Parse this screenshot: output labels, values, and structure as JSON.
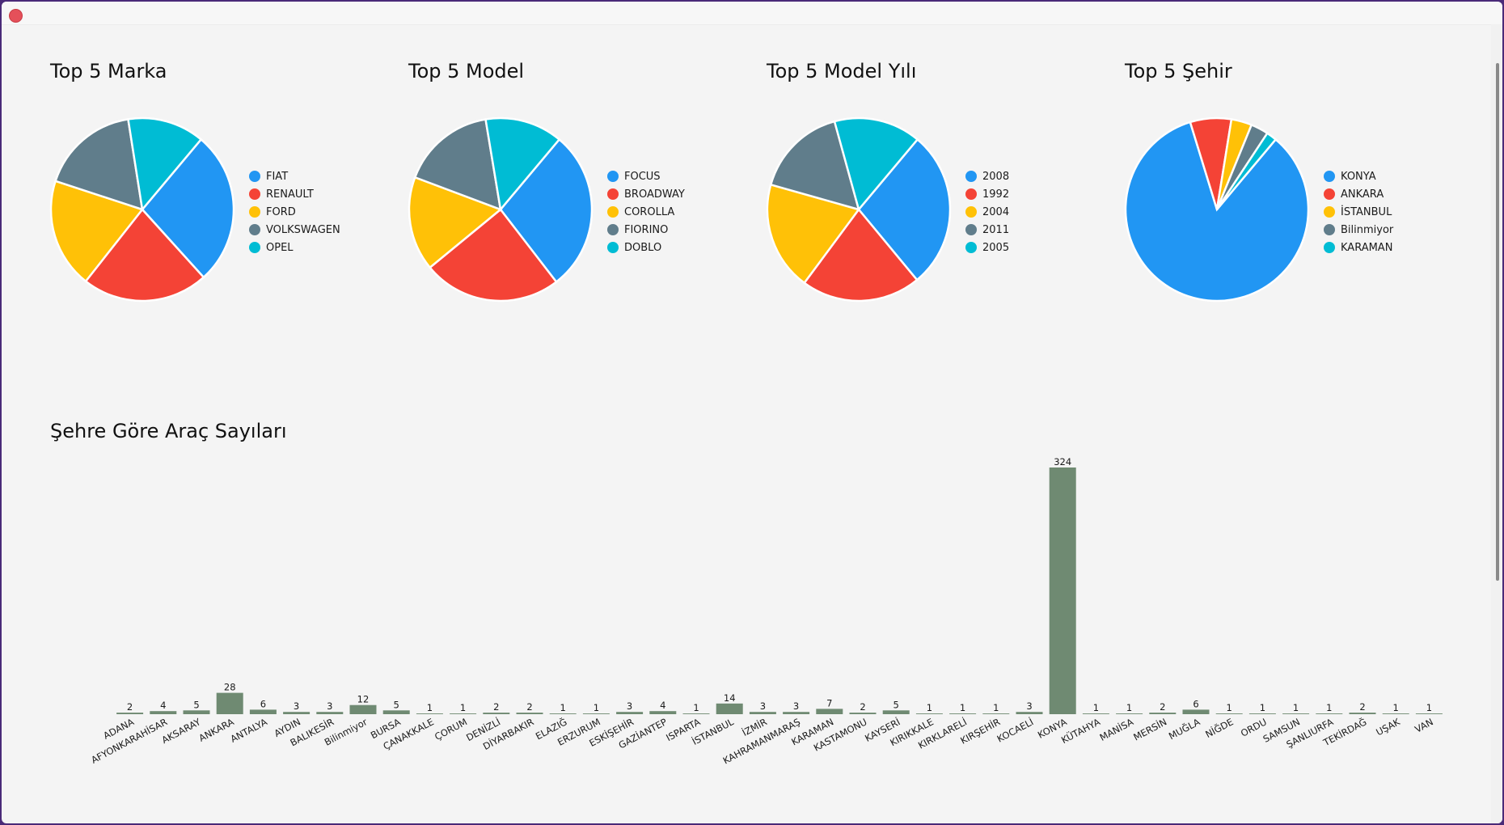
{
  "window": {
    "close_label": "Close"
  },
  "colors": {
    "pie": [
      "#2196f3",
      "#f44336",
      "#ffc107",
      "#607d8b",
      "#00bcd4"
    ],
    "bar": "#6f8a72",
    "background": "#f4f4f4"
  },
  "chart_data": [
    {
      "type": "pie",
      "title": "Top 5 Marka",
      "legend_position": "right",
      "labels": [
        "FIAT",
        "RENAULT",
        "FORD",
        "VOLKSWAGEN",
        "OPEL"
      ],
      "values": [
        28,
        23,
        20,
        18,
        14
      ]
    },
    {
      "type": "pie",
      "title": "Top 5 Model",
      "legend_position": "right",
      "labels": [
        "FOCUS",
        "BROADWAY",
        "COROLLA",
        "FIORINO",
        "DOBLO"
      ],
      "values": [
        29,
        25,
        17,
        17,
        14
      ]
    },
    {
      "type": "pie",
      "title": "Top 5 Model Yılı",
      "legend_position": "right",
      "labels": [
        "2008",
        "1992",
        "2004",
        "2011",
        "2005"
      ],
      "values": [
        29,
        22,
        20,
        17,
        16
      ]
    },
    {
      "type": "pie",
      "title": "Top 5 Şehir",
      "legend_position": "right",
      "labels": [
        "KONYA",
        "ANKARA",
        "İSTANBUL",
        "Bilinmiyor",
        "KARAMAN"
      ],
      "values": [
        324,
        28,
        14,
        12,
        7
      ]
    },
    {
      "type": "bar",
      "title": "Şehre Göre Araç Sayıları",
      "xlabel": "",
      "ylabel": "",
      "grid": false,
      "data_labels": true,
      "ylim": [
        0,
        324
      ],
      "categories": [
        "ADANA",
        "AFYONKARAHİSAR",
        "AKSARAY",
        "ANKARA",
        "ANTALYA",
        "AYDIN",
        "BALIKESİR",
        "Bilinmiyor",
        "BURSA",
        "ÇANAKKALE",
        "ÇORUM",
        "DENİZLİ",
        "DİYARBAKIR",
        "ELAZIĞ",
        "ERZURUM",
        "ESKİŞEHİR",
        "GAZİANTEP",
        "ISPARTA",
        "İSTANBUL",
        "İZMİR",
        "KAHRAMANMARAŞ",
        "KARAMAN",
        "KASTAMONU",
        "KAYSERİ",
        "KIRIKKALE",
        "KIRKLARELİ",
        "KIRŞEHİR",
        "KOCAELİ",
        "KONYA",
        "KÜTAHYA",
        "MANİSA",
        "MERSİN",
        "MUĞLA",
        "NİĞDE",
        "ORDU",
        "SAMSUN",
        "ŞANLIURFA",
        "TEKİRDAĞ",
        "UŞAK",
        "VAN"
      ],
      "values": [
        2,
        4,
        5,
        28,
        6,
        3,
        3,
        12,
        5,
        1,
        1,
        2,
        2,
        1,
        1,
        3,
        4,
        1,
        14,
        3,
        3,
        7,
        2,
        5,
        1,
        1,
        1,
        3,
        324,
        1,
        1,
        2,
        6,
        1,
        1,
        1,
        1,
        2,
        1,
        1
      ]
    }
  ]
}
